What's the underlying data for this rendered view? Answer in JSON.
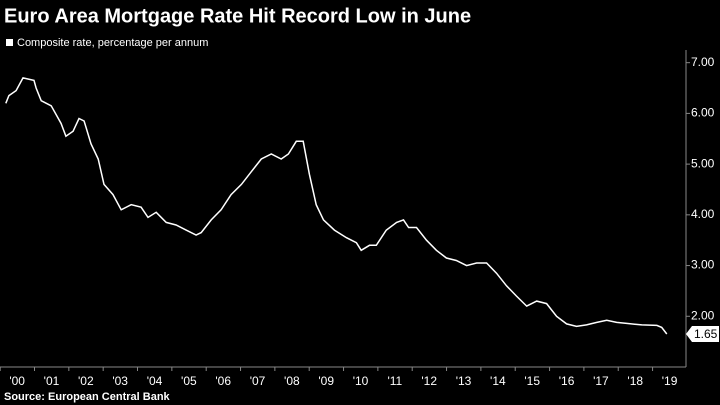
{
  "chart_data": {
    "type": "line",
    "title": "Euro Area Mortgage Rate Hit Record Low in June",
    "source": "Source: European Central Bank",
    "end_label": "1.65",
    "series": [
      {
        "name": "Composite rate, percentage per annum",
        "color": "#ffffff",
        "x": [
          2000.17,
          2000.26,
          2000.47,
          2000.67,
          2000.99,
          2001.05,
          2001.2,
          2001.49,
          2001.78,
          2001.92,
          2002.13,
          2002.3,
          2002.45,
          2002.65,
          2002.86,
          2003.03,
          2003.29,
          2003.53,
          2003.82,
          2004.11,
          2004.31,
          2004.55,
          2004.84,
          2005.13,
          2005.42,
          2005.71,
          2005.86,
          2006.15,
          2006.44,
          2006.73,
          2007.03,
          2007.32,
          2007.61,
          2007.9,
          2008.19,
          2008.4,
          2008.63,
          2008.83,
          2009.01,
          2009.21,
          2009.42,
          2009.74,
          2010.09,
          2010.38,
          2010.52,
          2010.76,
          2010.96,
          2011.25,
          2011.55,
          2011.75,
          2011.9,
          2012.13,
          2012.42,
          2012.71,
          2013.0,
          2013.29,
          2013.59,
          2013.88,
          2014.17,
          2014.46,
          2014.75,
          2015.04,
          2015.34,
          2015.63,
          2015.92,
          2016.21,
          2016.5,
          2016.79,
          2017.08,
          2017.38,
          2017.67,
          2017.96,
          2018.25,
          2018.69,
          2019.13,
          2019.27,
          2019.42
        ],
        "values": [
          6.2,
          6.35,
          6.45,
          6.7,
          6.65,
          6.5,
          6.25,
          6.15,
          5.8,
          5.55,
          5.65,
          5.9,
          5.85,
          5.4,
          5.1,
          4.6,
          4.4,
          4.1,
          4.2,
          4.15,
          3.95,
          4.05,
          3.85,
          3.8,
          3.7,
          3.6,
          3.65,
          3.9,
          4.1,
          4.4,
          4.6,
          4.85,
          5.1,
          5.2,
          5.1,
          5.2,
          5.45,
          5.45,
          4.8,
          4.2,
          3.9,
          3.7,
          3.55,
          3.45,
          3.3,
          3.4,
          3.4,
          3.7,
          3.85,
          3.9,
          3.75,
          3.75,
          3.5,
          3.3,
          3.15,
          3.1,
          3.0,
          3.05,
          3.05,
          2.85,
          2.6,
          2.4,
          2.2,
          2.3,
          2.25,
          2.0,
          1.85,
          1.8,
          1.83,
          1.88,
          1.92,
          1.88,
          1.86,
          1.83,
          1.82,
          1.78,
          1.65
        ]
      }
    ],
    "xlim": [
      2000,
      2019.6
    ],
    "xticks": [
      {
        "value": 2000.5,
        "label": "'00"
      },
      {
        "value": 2001.5,
        "label": "'01"
      },
      {
        "value": 2002.5,
        "label": "'02"
      },
      {
        "value": 2003.5,
        "label": "'03"
      },
      {
        "value": 2004.5,
        "label": "'04"
      },
      {
        "value": 2005.5,
        "label": "'05"
      },
      {
        "value": 2006.5,
        "label": "'06"
      },
      {
        "value": 2007.5,
        "label": "'07"
      },
      {
        "value": 2008.5,
        "label": "'08"
      },
      {
        "value": 2009.5,
        "label": "'09"
      },
      {
        "value": 2010.5,
        "label": "'10"
      },
      {
        "value": 2011.5,
        "label": "'11"
      },
      {
        "value": 2012.5,
        "label": "'12"
      },
      {
        "value": 2013.5,
        "label": "'13"
      },
      {
        "value": 2014.5,
        "label": "'14"
      },
      {
        "value": 2015.5,
        "label": "'15"
      },
      {
        "value": 2016.5,
        "label": "'16"
      },
      {
        "value": 2017.5,
        "label": "'17"
      },
      {
        "value": 2018.5,
        "label": "'18"
      },
      {
        "value": 2019.5,
        "label": "'19"
      }
    ],
    "ylim": [
      1.0,
      7.25
    ],
    "yticks": [
      {
        "value": 2,
        "label": "2.00"
      },
      {
        "value": 3,
        "label": "3.00"
      },
      {
        "value": 4,
        "label": "4.00"
      },
      {
        "value": 5,
        "label": "5.00"
      },
      {
        "value": 6,
        "label": "6.00"
      },
      {
        "value": 7,
        "label": "7.00"
      }
    ],
    "grid": false
  }
}
